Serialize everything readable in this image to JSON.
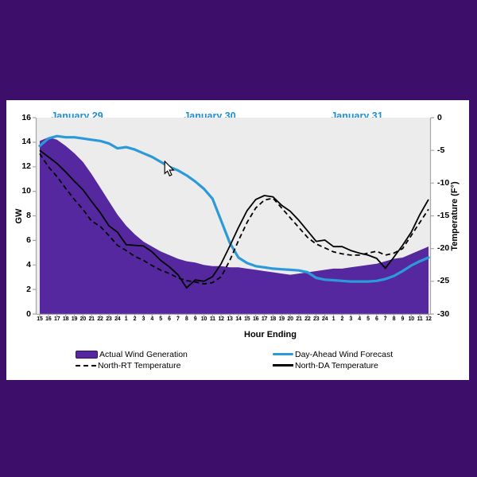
{
  "colors": {
    "frame_purple": "#3D0F6B",
    "area_purple": "#5528A0",
    "forecast_blue": "#2C9AD9",
    "plot_background": "#ECECEC",
    "axis_gray": "#A6A6A6",
    "day_label_blue": "#1E8FD5",
    "text": "#000000"
  },
  "chart_data": {
    "type": "area+line",
    "day_labels": [
      {
        "text": "January 29"
      },
      {
        "text": "January 30"
      },
      {
        "text": "January 31"
      }
    ],
    "x_axis": {
      "label": "Hour Ending",
      "hours": [
        "15",
        "16",
        "17",
        "18",
        "19",
        "20",
        "21",
        "22",
        "23",
        "24",
        "1",
        "2",
        "3",
        "4",
        "5",
        "6",
        "7",
        "8",
        "9",
        "10",
        "11",
        "12",
        "13",
        "14",
        "15",
        "16",
        "17",
        "18",
        "19",
        "20",
        "21",
        "22",
        "23",
        "24",
        "1",
        "2",
        "3",
        "4",
        "5",
        "6",
        "7",
        "8",
        "9",
        "10",
        "11",
        "12"
      ]
    },
    "y_left": {
      "label": "GW",
      "min": 0,
      "max": 16,
      "ticks": [
        16,
        14,
        12,
        10,
        8,
        6,
        4,
        2,
        0
      ]
    },
    "y_right": {
      "label": "Temperature (F°)",
      "min": -30,
      "max": 0,
      "ticks": [
        0,
        -5,
        -10,
        -15,
        -20,
        -25,
        -30
      ]
    },
    "grid": false,
    "legend_position": "bottom",
    "series": [
      {
        "name": "Actual Wind Generation",
        "type": "area",
        "axis": "left",
        "color": "#5528A0",
        "values": [
          14.1,
          14.4,
          14.2,
          13.7,
          13.1,
          12.4,
          11.4,
          10.3,
          9.2,
          8.1,
          7.2,
          6.5,
          5.9,
          5.5,
          5.1,
          4.8,
          4.5,
          4.3,
          4.2,
          4.0,
          3.9,
          3.9,
          3.8,
          3.8,
          3.7,
          3.6,
          3.5,
          3.4,
          3.3,
          3.2,
          3.3,
          3.4,
          3.5,
          3.6,
          3.7,
          3.7,
          3.8,
          3.9,
          4.0,
          4.1,
          4.3,
          4.5,
          4.6,
          4.9,
          5.2,
          5.5
        ]
      },
      {
        "name": "Day-Ahead Wind Forecast",
        "type": "line",
        "axis": "left",
        "color": "#2C9AD9",
        "values": [
          13.7,
          14.3,
          14.5,
          14.4,
          14.4,
          14.3,
          14.2,
          14.1,
          13.9,
          13.5,
          13.6,
          13.4,
          13.1,
          12.8,
          12.4,
          12.0,
          11.7,
          11.3,
          10.8,
          10.2,
          9.4,
          7.6,
          5.8,
          4.6,
          4.15,
          3.9,
          3.8,
          3.7,
          3.65,
          3.6,
          3.55,
          3.4,
          2.95,
          2.8,
          2.75,
          2.7,
          2.65,
          2.65,
          2.65,
          2.7,
          2.85,
          3.1,
          3.5,
          3.95,
          4.3,
          4.6
        ]
      },
      {
        "name": "North-RT Temperature",
        "type": "line-dashed",
        "axis": "right",
        "color": "#000000",
        "values": [
          -5.5,
          -7.5,
          -9,
          -10.8,
          -12.5,
          -14,
          -15.8,
          -16.6,
          -18,
          -19.5,
          -20.3,
          -21.2,
          -21.8,
          -22.6,
          -23.3,
          -23.8,
          -24.5,
          -24.9,
          -25.1,
          -25.4,
          -25.2,
          -24.3,
          -21.8,
          -18.8,
          -16,
          -13.8,
          -12.6,
          -12.3,
          -13.8,
          -15.3,
          -16.8,
          -18.3,
          -19.3,
          -19.9,
          -20.5,
          -20.8,
          -21,
          -21,
          -20.7,
          -20.4,
          -21,
          -20.7,
          -20,
          -18,
          -16,
          -14
        ]
      },
      {
        "name": "North-DA Temperature",
        "type": "line",
        "axis": "right",
        "color": "#000000",
        "values": [
          -5,
          -6,
          -7,
          -8.3,
          -9.7,
          -11,
          -12.8,
          -14.5,
          -16.5,
          -17.5,
          -19.4,
          -19.5,
          -19.6,
          -20.5,
          -21.8,
          -22.8,
          -24,
          -26,
          -24.8,
          -25,
          -24.3,
          -22.3,
          -19.6,
          -16.8,
          -14.2,
          -12.5,
          -11.9,
          -12.1,
          -13.4,
          -14.3,
          -15.7,
          -17.3,
          -18.9,
          -18.7,
          -19.7,
          -19.7,
          -20.3,
          -20.7,
          -21,
          -21.5,
          -23,
          -21.3,
          -19.5,
          -17.5,
          -14.8,
          -12.5
        ]
      }
    ]
  }
}
